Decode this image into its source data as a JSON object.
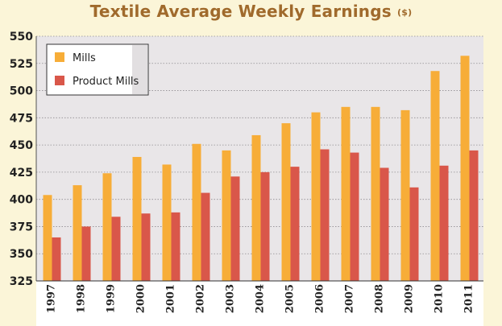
{
  "chart_data": {
    "type": "bar",
    "title": "Textile Average Weekly Earnings",
    "title_unit": "($)",
    "xlabel": "",
    "ylabel": "",
    "ylim": [
      325,
      550
    ],
    "yticks": [
      325,
      350,
      375,
      400,
      425,
      450,
      475,
      500,
      525,
      550
    ],
    "grid": true,
    "legend_position": "top-left",
    "categories": [
      "1997",
      "1998",
      "1999",
      "2000",
      "2001",
      "2002",
      "2003",
      "2004",
      "2005",
      "2006",
      "2007",
      "2008",
      "2009",
      "2010",
      "2011"
    ],
    "series": [
      {
        "name": "Mills",
        "color": "#f7ad38",
        "values": [
          404,
          413,
          424,
          439,
          432,
          451,
          445,
          459,
          470,
          480,
          485,
          485,
          482,
          518,
          532
        ]
      },
      {
        "name": "Product Mills",
        "color": "#d9574a",
        "values": [
          365,
          375,
          384,
          387,
          388,
          406,
          421,
          425,
          430,
          446,
          443,
          429,
          411,
          431,
          445
        ]
      }
    ]
  }
}
